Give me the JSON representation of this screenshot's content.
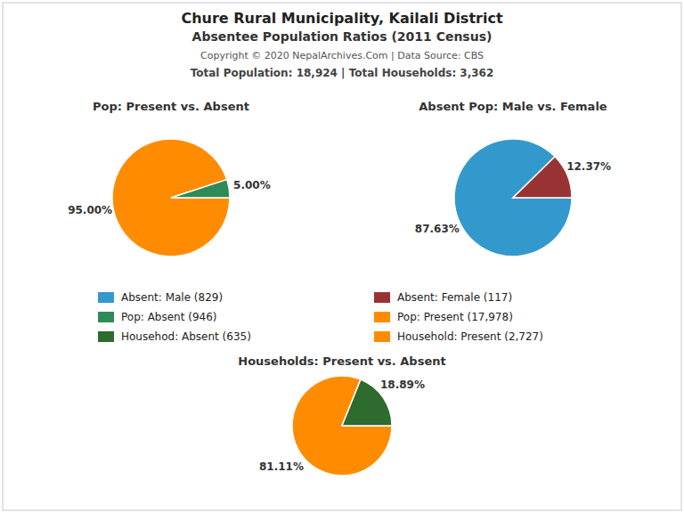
{
  "title": "Chure Rural Municipality, Kailali District",
  "subtitle": "Absentee Population Ratios (2011 Census)",
  "annotations": [
    "Copyright © 2020 NepalArchives.Com | Data Source: CBS",
    "Total Population: 18,924 | Total Households: 3,362"
  ],
  "chart_data": [
    {
      "type": "pie",
      "title": "Pop: Present vs. Absent",
      "categories": [
        "Pop: Present (17,978)",
        "Pop: Absent (946)"
      ],
      "values": [
        95.0,
        5.0
      ],
      "value_labels": [
        "95.00%",
        "5.00%"
      ],
      "colors": [
        "#FF8C00",
        "#2E8B57"
      ],
      "data_labels": true,
      "legend": "center"
    },
    {
      "type": "pie",
      "title": "Absent Pop: Male vs. Female",
      "categories": [
        "Absent: Male (829)",
        "Absent: Female (117)"
      ],
      "values": [
        87.63,
        12.37
      ],
      "value_labels": [
        "87.63%",
        "12.37%"
      ],
      "colors": [
        "#3399CC",
        "#993333"
      ],
      "data_labels": true,
      "legend": "center"
    },
    {
      "type": "pie",
      "title": "Households: Present vs. Absent",
      "categories": [
        "Household: Present (2,727)",
        "Househod: Absent (635)"
      ],
      "values": [
        81.11,
        18.89
      ],
      "value_labels": [
        "81.11%",
        "18.89%"
      ],
      "colors": [
        "#FF8C00",
        "#2E6B2E"
      ],
      "data_labels": true,
      "legend": "center"
    }
  ]
}
